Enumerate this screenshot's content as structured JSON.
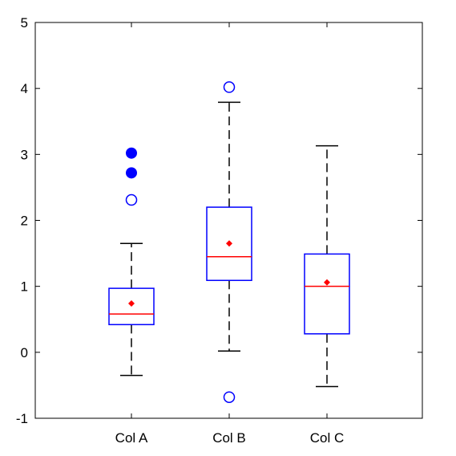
{
  "chart_data": {
    "type": "boxplot",
    "title": "",
    "xlabel": "",
    "ylabel": "",
    "ylim": [
      -1,
      5
    ],
    "yticks": [
      -1,
      0,
      1,
      2,
      3,
      4,
      5
    ],
    "grid": false,
    "categories": [
      "Col A",
      "Col B",
      "Col C"
    ],
    "boxes": [
      {
        "label": "Col A",
        "whisker_low": -0.35,
        "q1": 0.42,
        "median": 0.58,
        "q3": 0.97,
        "whisker_high": 1.65,
        "mean": 0.74,
        "outliers": [
          {
            "value": 2.31,
            "kind": "mild"
          },
          {
            "value": 2.72,
            "kind": "extreme"
          },
          {
            "value": 3.02,
            "kind": "extreme"
          }
        ]
      },
      {
        "label": "Col B",
        "whisker_low": 0.02,
        "q1": 1.09,
        "median": 1.45,
        "q3": 2.2,
        "whisker_high": 3.79,
        "mean": 1.65,
        "outliers": [
          {
            "value": 4.02,
            "kind": "mild"
          },
          {
            "value": -0.68,
            "kind": "mild"
          }
        ]
      },
      {
        "label": "Col C",
        "whisker_low": -0.52,
        "q1": 0.28,
        "median": 1.0,
        "q3": 1.49,
        "whisker_high": 3.13,
        "mean": 1.06,
        "outliers": []
      }
    ],
    "colors": {
      "box": "#0000ff",
      "median": "#ff0000",
      "mean": "#ff0000",
      "whisker": "#000000",
      "outlier": "#0000ff",
      "axes": "#000000"
    }
  }
}
